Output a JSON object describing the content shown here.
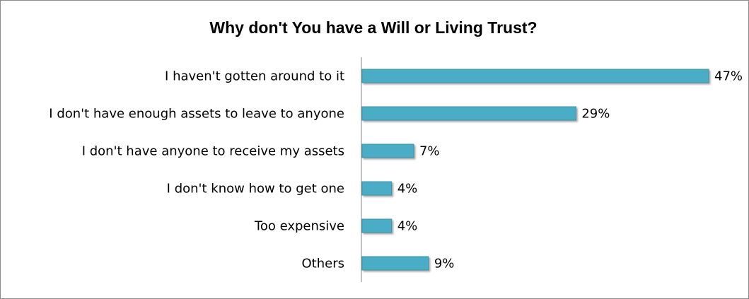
{
  "chart_data": {
    "type": "bar",
    "orientation": "horizontal",
    "title": "Why don't You have a Will or Living Trust?",
    "categories": [
      "I haven't gotten around to it",
      "I don't have enough assets to leave to anyone",
      "I don't have anyone to receive my assets",
      "I don't know how to get one",
      "Too expensive",
      "Others"
    ],
    "values": [
      47,
      29,
      7,
      4,
      4,
      9
    ],
    "data_labels": [
      "47%",
      "29%",
      "7%",
      "4%",
      "4%",
      "9%"
    ],
    "unit": "%",
    "xlim": [
      0,
      47
    ],
    "grid": false,
    "legend": "none",
    "bar_color": "#4bacc6",
    "bar_edge_color": "#3a94ad"
  }
}
